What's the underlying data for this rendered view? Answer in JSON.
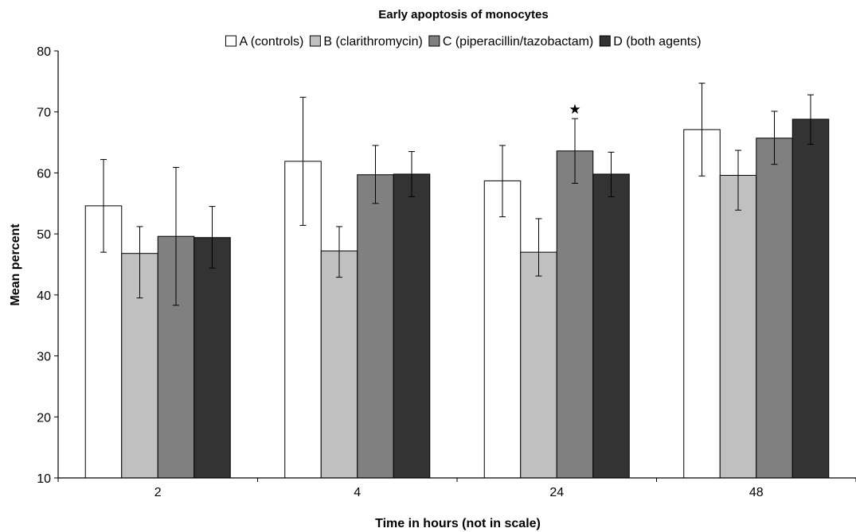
{
  "chart_data": {
    "type": "bar",
    "title": "Early apoptosis of monocytes",
    "xlabel": "Time in hours (not in scale)",
    "ylabel": "Mean percent",
    "categories": [
      "2",
      "4",
      "24",
      "48"
    ],
    "ylim": [
      10,
      80
    ],
    "yticks": [
      10,
      20,
      30,
      40,
      50,
      60,
      70,
      80
    ],
    "grid": false,
    "legend_position": "top",
    "series": [
      {
        "name": "A (controls)",
        "color": "#ffffff",
        "values": [
          54.6,
          61.9,
          58.7,
          67.1
        ],
        "error_low": [
          47.0,
          51.4,
          52.8,
          59.5
        ],
        "error_high": [
          62.2,
          72.4,
          64.5,
          74.7
        ]
      },
      {
        "name": "B (clarithromycin)",
        "color": "#c0c0c0",
        "values": [
          46.8,
          47.2,
          47.0,
          59.6
        ],
        "error_low": [
          39.5,
          42.9,
          43.1,
          53.9
        ],
        "error_high": [
          51.2,
          51.2,
          52.5,
          63.7
        ]
      },
      {
        "name": "C (piperacillin/tazobactam)",
        "color": "#808080",
        "values": [
          49.6,
          59.7,
          63.6,
          65.7
        ],
        "error_low": [
          38.3,
          55.0,
          58.3,
          61.4
        ],
        "error_high": [
          60.9,
          64.5,
          68.9,
          70.1
        ]
      },
      {
        "name": "D (both agents)",
        "color": "#333333",
        "values": [
          49.4,
          59.8,
          59.8,
          68.8
        ],
        "error_low": [
          44.4,
          56.1,
          56.1,
          64.7
        ],
        "error_high": [
          54.5,
          63.5,
          63.4,
          72.8
        ]
      }
    ],
    "annotations": [
      {
        "text": "★",
        "category": "24",
        "series": "C (piperacillin/tazobactam)"
      }
    ]
  }
}
